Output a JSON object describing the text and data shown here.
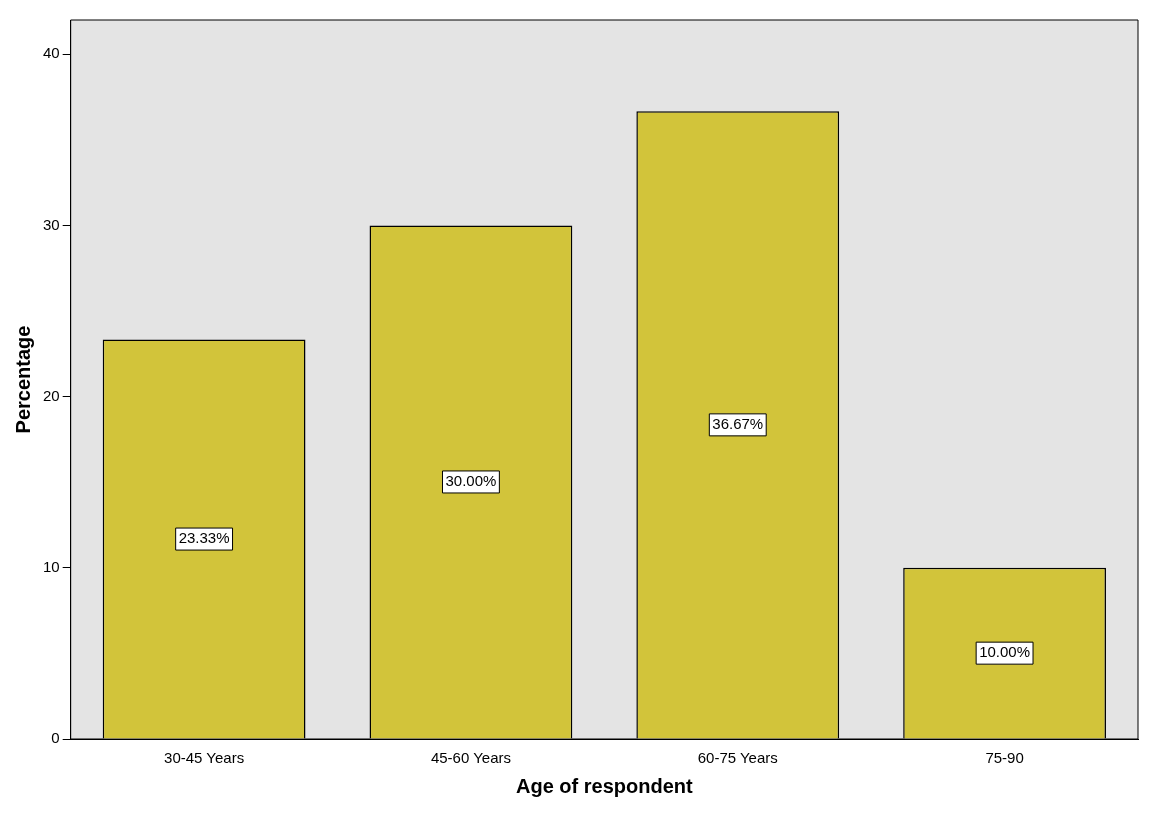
{
  "chart_data": {
    "type": "bar",
    "xlabel": "Age of respondent",
    "ylabel": "Percentage",
    "categories": [
      "30-45 Years",
      "45-60 Years",
      "60-75 Years",
      "75-90"
    ],
    "values": [
      23.33,
      30.0,
      36.67,
      10.0
    ],
    "value_labels": [
      "23.33%",
      "30.00%",
      "36.67%",
      "10.00%"
    ],
    "color": "#d2c43a",
    "ylim": [
      0,
      42
    ],
    "yticks": [
      0,
      10,
      20,
      30,
      40
    ],
    "grid": false,
    "legend": false
  }
}
